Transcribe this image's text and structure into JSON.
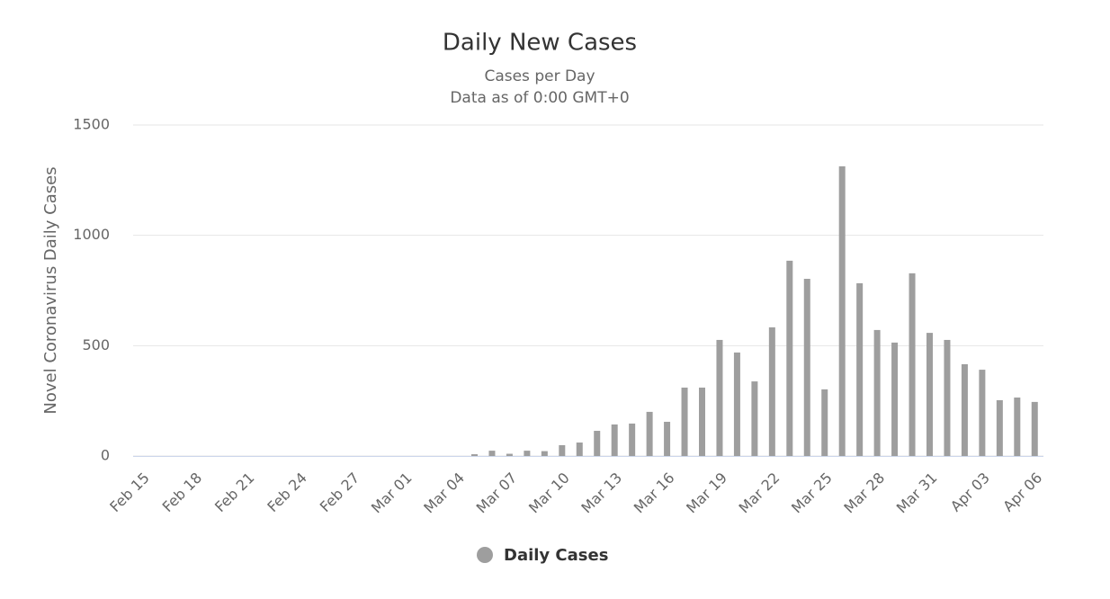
{
  "chart_data": {
    "type": "bar",
    "title": "Daily New Cases",
    "subtitle": "Cases per Day",
    "subtitle2": "Data as of 0:00 GMT+0",
    "y_label": "Novel Coronavirus Daily Cases",
    "categories": [
      "Feb 15",
      null,
      null,
      "Feb 18",
      null,
      null,
      "Feb 21",
      null,
      null,
      "Feb 24",
      null,
      null,
      "Feb 27",
      null,
      null,
      "Mar 01",
      null,
      null,
      "Mar 04",
      null,
      null,
      "Mar 07",
      null,
      null,
      "Mar 10",
      null,
      null,
      "Mar 13",
      null,
      null,
      "Mar 16",
      null,
      null,
      "Mar 19",
      null,
      null,
      "Mar 22",
      null,
      null,
      "Mar 25",
      null,
      null,
      "Mar 28",
      null,
      null,
      "Mar 31",
      null,
      null,
      "Apr 03",
      null,
      null,
      "Apr 06"
    ],
    "series": [
      {
        "name": "Daily Cases",
        "color": "#9e9e9e",
        "values": [
          0,
          0,
          0,
          0,
          0,
          0,
          0,
          0,
          0,
          0,
          0,
          0,
          0,
          0,
          0,
          0,
          0,
          0,
          0,
          8,
          24,
          10,
          24,
          22,
          49,
          61,
          114,
          143,
          147,
          200,
          155,
          310,
          310,
          526,
          469,
          338,
          583,
          885,
          803,
          302,
          1313,
          783,
          571,
          514,
          828,
          558,
          526,
          416,
          391,
          253,
          265,
          245
        ]
      }
    ],
    "ylim": [
      0,
      1500
    ],
    "yticks": [
      0,
      500,
      1000,
      1500
    ],
    "grid": true
  }
}
